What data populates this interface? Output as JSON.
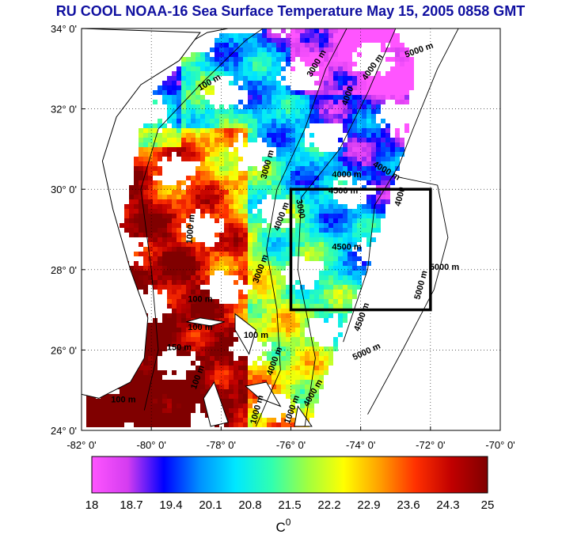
{
  "title": "RU COOL  NOAA-16 Sea Surface Temperature May 15, 2005 0858 GMT",
  "map": {
    "lat_range": [
      24,
      34
    ],
    "lon_range": [
      -82,
      -70
    ],
    "lat_ticks": [
      "34° 0'",
      "32° 0'",
      "30° 0'",
      "28° 0'",
      "26° 0'",
      "24° 0'"
    ],
    "lon_ticks": [
      "-82° 0'",
      "-80° 0'",
      "-78° 0'",
      "-76° 0'",
      "-74° 0'",
      "-72° 0'",
      "-70° 0'"
    ],
    "grid": "dotted",
    "study_box": {
      "lon": [
        -76,
        -72
      ],
      "lat": [
        27,
        30
      ]
    },
    "contour_labels": [
      {
        "text": "3000 m",
        "lon": -75.2,
        "lat": 33.1,
        "angle": -60
      },
      {
        "text": "4000 m",
        "lon": -73.6,
        "lat": 33.0,
        "angle": -55
      },
      {
        "text": "5000 m",
        "lon": -72.3,
        "lat": 33.4,
        "angle": -20
      },
      {
        "text": "100 m",
        "lon": -78.3,
        "lat": 32.6,
        "angle": -30
      },
      {
        "text": "4000",
        "lon": -74.3,
        "lat": 32.3,
        "angle": -70
      },
      {
        "text": "4000 m",
        "lon": -73.3,
        "lat": 30.4,
        "angle": 30
      },
      {
        "text": "4000 m",
        "lon": -74.4,
        "lat": 30.3,
        "angle": 0
      },
      {
        "text": "4500 m",
        "lon": -74.5,
        "lat": 29.9,
        "angle": 0
      },
      {
        "text": "3000 m",
        "lon": -76.6,
        "lat": 30.6,
        "angle": -75
      },
      {
        "text": "4000",
        "lon": -72.8,
        "lat": 29.8,
        "angle": -75
      },
      {
        "text": "3000",
        "lon": -75.8,
        "lat": 29.5,
        "angle": 80
      },
      {
        "text": "4500 m",
        "lon": -74.4,
        "lat": 28.5,
        "angle": 0
      },
      {
        "text": "5000 m",
        "lon": -71.6,
        "lat": 28.0,
        "angle": 0
      },
      {
        "text": "5000 m",
        "lon": -72.2,
        "lat": 27.6,
        "angle": -75
      },
      {
        "text": "4500 m",
        "lon": -73.9,
        "lat": 26.8,
        "angle": -70
      },
      {
        "text": "5000 m",
        "lon": -73.8,
        "lat": 25.9,
        "angle": -25
      },
      {
        "text": "1000 m",
        "lon": -78.8,
        "lat": 29.0,
        "angle": -85
      },
      {
        "text": "3000 m",
        "lon": -76.8,
        "lat": 28.0,
        "angle": -70
      },
      {
        "text": "4000 m",
        "lon": -76.2,
        "lat": 29.3,
        "angle": -70
      },
      {
        "text": "100 m",
        "lon": -78.6,
        "lat": 27.2,
        "angle": 0
      },
      {
        "text": "100 m",
        "lon": -78.6,
        "lat": 26.5,
        "angle": 0
      },
      {
        "text": "100 m",
        "lon": -77.0,
        "lat": 26.3,
        "angle": 0
      },
      {
        "text": "150 m",
        "lon": -79.2,
        "lat": 26.0,
        "angle": 0
      },
      {
        "text": "100 m",
        "lon": -78.6,
        "lat": 25.3,
        "angle": -70
      },
      {
        "text": "4000 m",
        "lon": -76.4,
        "lat": 25.7,
        "angle": -70
      },
      {
        "text": "4000 m",
        "lon": -75.3,
        "lat": 24.9,
        "angle": -60
      },
      {
        "text": "1000 m",
        "lon": -75.9,
        "lat": 24.5,
        "angle": -70
      },
      {
        "text": "1000 m",
        "lon": -76.9,
        "lat": 24.5,
        "angle": -75
      },
      {
        "text": "100 m",
        "lon": -80.8,
        "lat": 24.7,
        "angle": 0
      }
    ]
  },
  "colorbar": {
    "tick_labels": [
      "18",
      "18.7",
      "19.4",
      "20.1",
      "20.8",
      "21.5",
      "22.2",
      "22.9",
      "23.6",
      "24.3",
      "25"
    ],
    "min": 18,
    "max": 25,
    "unit": "C",
    "unit_superscript": "0",
    "stops": [
      "#ff55ff",
      "#d43cf0",
      "#0000ff",
      "#0090ff",
      "#00e8ff",
      "#30ffb0",
      "#a0ff40",
      "#ffff00",
      "#ffa000",
      "#ff3000",
      "#c00000",
      "#800000"
    ]
  },
  "colors": {
    "land": "#ffffff",
    "coast": "#000000",
    "cloud": "#ffffff"
  }
}
